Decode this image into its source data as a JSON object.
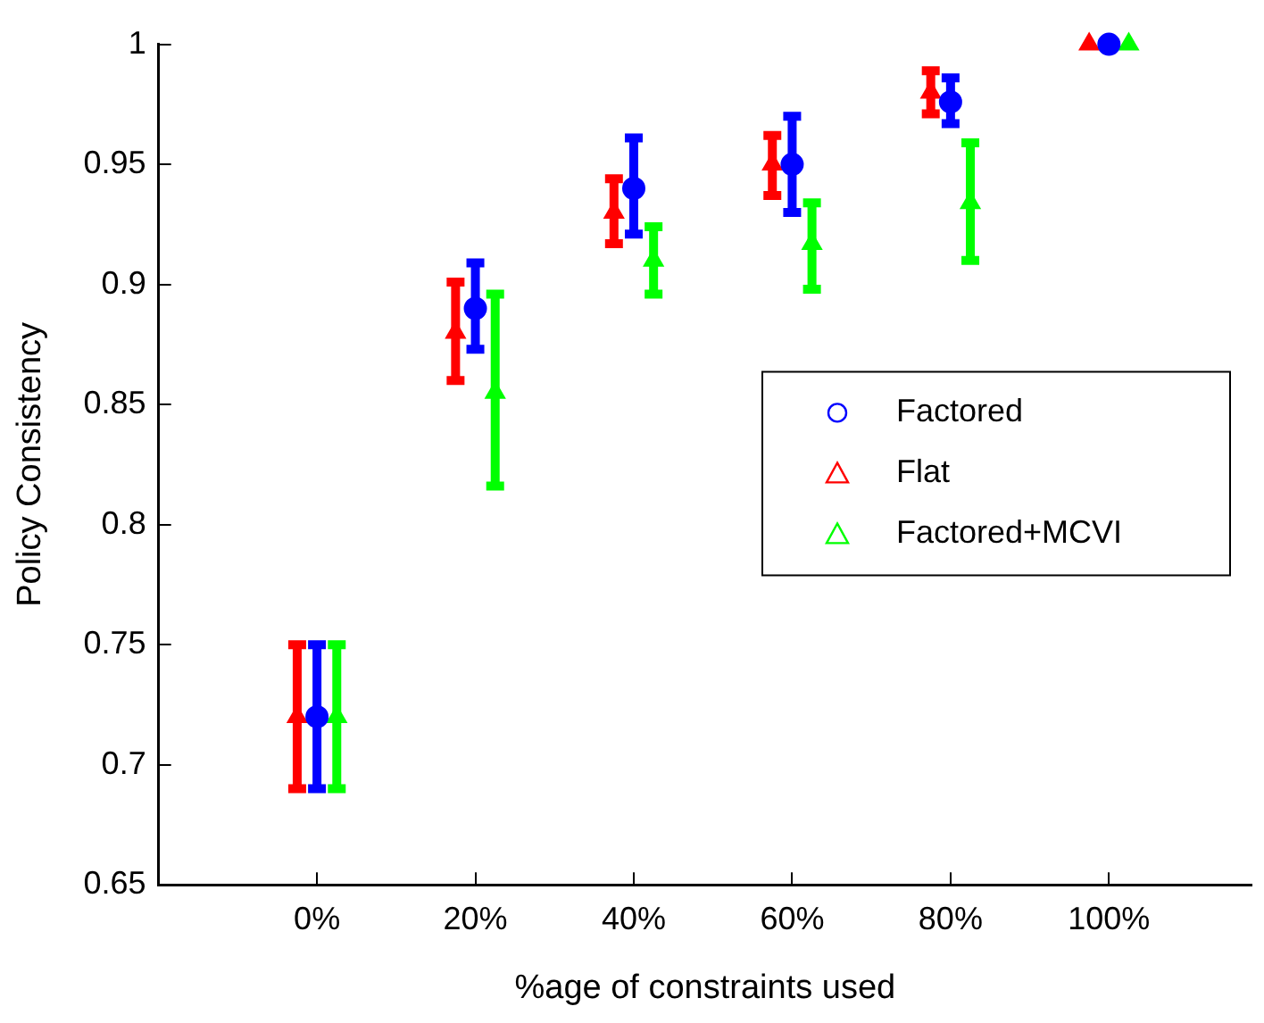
{
  "chart_data": {
    "type": "scatter",
    "xlabel": "%age of constraints used",
    "ylabel": "Policy Consistency",
    "xlim": [
      -20,
      118
    ],
    "xticks": [
      {
        "value": 0,
        "label": "0%"
      },
      {
        "value": 20,
        "label": "20%"
      },
      {
        "value": 40,
        "label": "40%"
      },
      {
        "value": 60,
        "label": "60%"
      },
      {
        "value": 80,
        "label": "80%"
      },
      {
        "value": 100,
        "label": "100%"
      }
    ],
    "ylim": [
      0.65,
      1
    ],
    "yticks": [
      0.65,
      0.7,
      0.75,
      0.8,
      0.85,
      0.9,
      0.95,
      1
    ],
    "legend": "right",
    "grid": false,
    "series": [
      {
        "name": "Factored",
        "color": "#0000ff",
        "marker": "circle",
        "x": [
          0,
          20,
          40,
          60,
          80,
          100
        ],
        "values": [
          0.72,
          0.89,
          0.94,
          0.95,
          0.976,
          1
        ],
        "errors": [
          [
            0.69,
            0.75
          ],
          [
            0.873,
            0.909
          ],
          [
            0.921,
            0.961
          ],
          [
            0.93,
            0.97
          ],
          [
            0.967,
            0.986
          ],
          null
        ]
      },
      {
        "name": "Flat",
        "color": "#ff0000",
        "marker": "triangle",
        "x": [
          -2.5,
          17.5,
          37.5,
          57.5,
          77.5,
          97.5
        ],
        "values": [
          0.72,
          0.88,
          0.93,
          0.95,
          0.98,
          1
        ],
        "errors": [
          [
            0.69,
            0.75
          ],
          [
            0.86,
            0.901
          ],
          [
            0.917,
            0.944
          ],
          [
            0.937,
            0.962
          ],
          [
            0.971,
            0.989
          ],
          null
        ]
      },
      {
        "name": "Factored+MCVI",
        "color": "#00ff00",
        "marker": "triangle",
        "x": [
          2.5,
          22.5,
          42.5,
          62.5,
          82.5,
          102.5
        ],
        "values": [
          0.72,
          0.855,
          0.91,
          0.917,
          0.934,
          1
        ],
        "errors": [
          [
            0.69,
            0.75
          ],
          [
            0.816,
            0.896
          ],
          [
            0.896,
            0.924
          ],
          [
            0.898,
            0.934
          ],
          [
            0.91,
            0.959
          ],
          null
        ]
      }
    ]
  }
}
